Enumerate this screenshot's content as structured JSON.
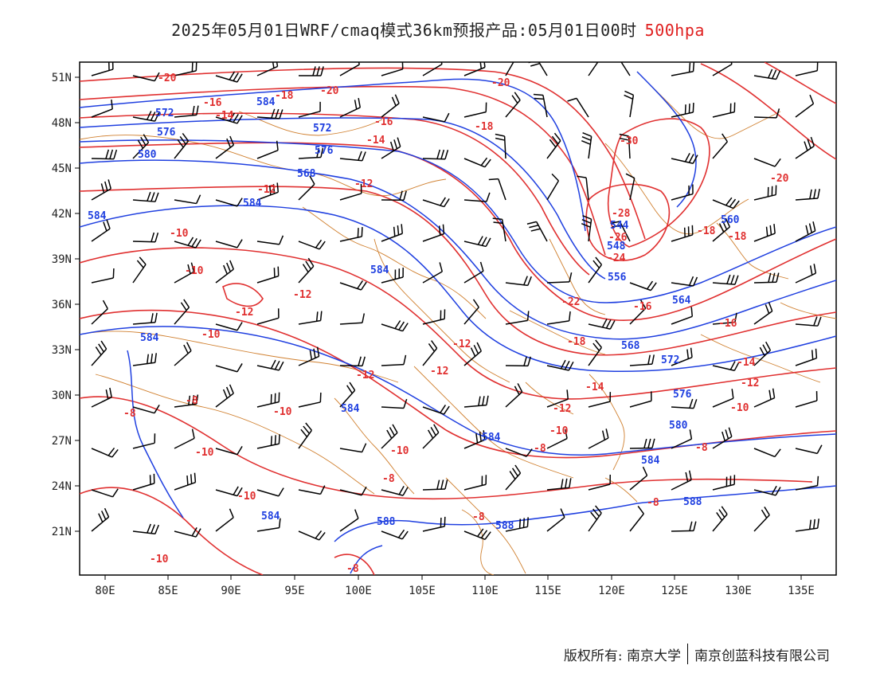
{
  "title": {
    "main": "2025年05月01日WRF/cmaq模式36km预报产品:05月01日00时",
    "level": "500hpa"
  },
  "axes": {
    "lat_labels": [
      "51N",
      "48N",
      "45N",
      "42N",
      "39N",
      "36N",
      "33N",
      "30N",
      "27N",
      "24N",
      "21N"
    ],
    "lon_labels": [
      "80E",
      "85E",
      "90E",
      "95E",
      "100E",
      "105E",
      "110E",
      "115E",
      "120E",
      "125E",
      "130E",
      "135E"
    ]
  },
  "contours": {
    "height_labels": [
      "584",
      "580",
      "576",
      "572",
      "568",
      "564",
      "560",
      "556",
      "548",
      "544",
      "588"
    ],
    "temp_labels": [
      "-20",
      "-18",
      "-16",
      "-14",
      "-12",
      "-10",
      "-8",
      "-22",
      "-24",
      "-26",
      "-28",
      "-30"
    ]
  },
  "credits": {
    "left": "版权所有: 南京大学",
    "right": "南京创蓝科技有限公司"
  },
  "colors": {
    "height": "#2040e0",
    "temperature": "#e03030",
    "border": "#d08030",
    "barb": "#000000"
  }
}
